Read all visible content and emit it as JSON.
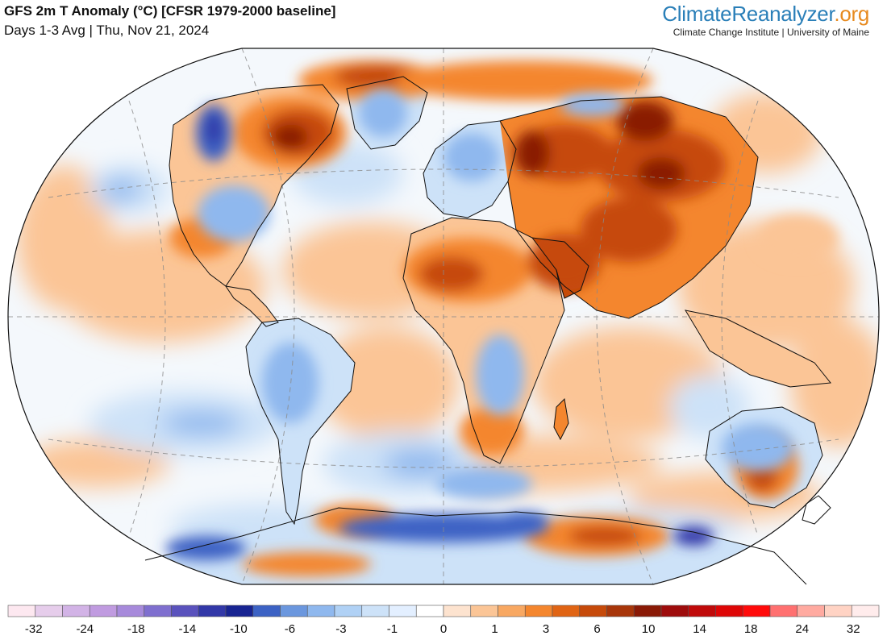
{
  "header": {
    "title": "GFS 2m T Anomaly (°C) [CFSR 1979-2000 baseline]",
    "subtitle": "Days 1-3 Avg | Thu, Nov 21, 2024"
  },
  "brand": {
    "part1": "Climate",
    "part2": "Reanalyzer",
    "part3": ".org",
    "subtitle": "Climate Change Institute | University of Maine"
  },
  "legend": {
    "colors": [
      "#fde8f0",
      "#e6cdeb",
      "#d2b3e6",
      "#c09be0",
      "#a78adb",
      "#7f6fcf",
      "#5a52bd",
      "#3238a8",
      "#182492",
      "#3c62c4",
      "#6b97de",
      "#8fb8ee",
      "#b0d1f5",
      "#cde2f8",
      "#e3efff",
      "#ffffff",
      "#fde3cf",
      "#fbc596",
      "#f8a862",
      "#f4862e",
      "#e06414",
      "#c64a0a",
      "#a8360a",
      "#8a1a06",
      "#9e0c0c",
      "#c00a0a",
      "#de0606",
      "#ff0a0a",
      "#ff7070",
      "#ffaaa0",
      "#ffd3c4",
      "#ffecec"
    ],
    "labels": [
      "-32",
      "-24",
      "-18",
      "-14",
      "-10",
      "-6",
      "-3",
      "-1",
      "0",
      "1",
      "3",
      "6",
      "10",
      "14",
      "18",
      "24",
      "32"
    ]
  },
  "map": {
    "projection": "Winkel Tripel",
    "palette": {
      "ocean_neutral": "#f4f8fc",
      "light_warm": "#fbc596",
      "warm": "#f4862e",
      "strong_warm": "#c64a0a",
      "extreme_warm": "#8a1a06",
      "light_cool": "#cde2f8",
      "cool": "#8fb8ee",
      "strong_cool": "#3c62c4",
      "extreme_cool": "#3238a8"
    }
  }
}
